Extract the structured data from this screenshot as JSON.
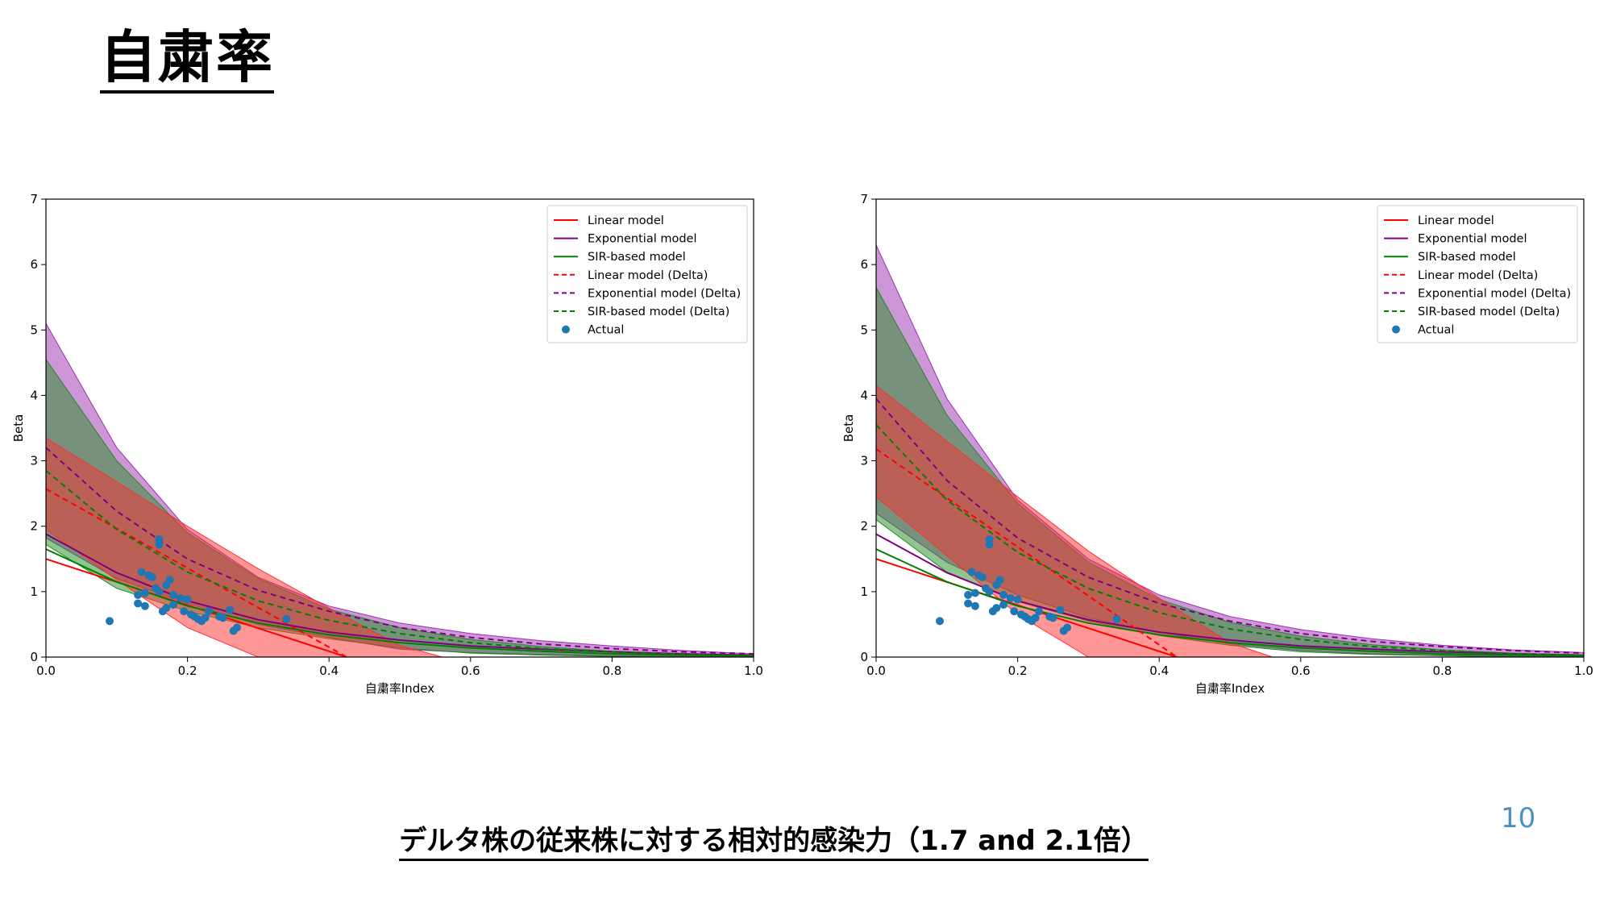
{
  "slide": {
    "title": "自粛率",
    "caption": "デルタ株の従来株に対する相対的感染力（1.7 and 2.1倍）",
    "page_number": "10"
  },
  "colors": {
    "linear": "#ff0000",
    "exponential": "#800080",
    "sir": "#008000",
    "actual": "#1f77b4",
    "page_number": "#4a90c2"
  },
  "chart_data": [
    {
      "type": "line",
      "xlabel": "自粛率Index",
      "ylabel": "Beta",
      "xlim": [
        0,
        1
      ],
      "ylim": [
        0,
        7
      ],
      "xticks": [
        "0.0",
        "0.2",
        "0.4",
        "0.6",
        "0.8",
        "1.0"
      ],
      "yticks": [
        "0",
        "1",
        "2",
        "3",
        "4",
        "5",
        "6",
        "7"
      ],
      "grid": false,
      "legend_position": "top-right",
      "legend": [
        "Linear model",
        "Exponential model",
        "SIR-based model",
        "Linear model (Delta)",
        "Exponential model (Delta)",
        "SIR-based model (Delta)",
        "Actual"
      ],
      "series": [
        {
          "name": "Linear model",
          "color": "#ff0000",
          "style": "solid",
          "x": [
            0,
            0.425
          ],
          "y": [
            1.5,
            0
          ]
        },
        {
          "name": "Exponential model",
          "color": "#800080",
          "style": "solid",
          "x": [
            0,
            0.1,
            0.2,
            0.3,
            0.4,
            0.5,
            0.6,
            0.7,
            0.8,
            0.9,
            1.0
          ],
          "y": [
            1.88,
            1.29,
            0.86,
            0.57,
            0.38,
            0.26,
            0.17,
            0.12,
            0.08,
            0.05,
            0.03
          ]
        },
        {
          "name": "SIR-based model",
          "color": "#008000",
          "style": "solid",
          "x": [
            0,
            0.1,
            0.2,
            0.3,
            0.4,
            0.5,
            0.6,
            0.7,
            0.8,
            0.9,
            1.0
          ],
          "y": [
            1.65,
            1.15,
            0.78,
            0.52,
            0.34,
            0.22,
            0.14,
            0.09,
            0.05,
            0.03,
            0.02
          ]
        },
        {
          "name": "Linear model (Delta)",
          "color": "#ff0000",
          "style": "dashed",
          "x": [
            0,
            0.425
          ],
          "y": [
            2.57,
            0
          ]
        },
        {
          "name": "Exponential model (Delta)",
          "color": "#800080",
          "style": "dashed",
          "x": [
            0,
            0.1,
            0.2,
            0.3,
            0.4,
            0.5,
            0.6,
            0.7,
            0.8,
            0.9,
            1.0
          ],
          "y": [
            3.2,
            2.23,
            1.5,
            1.02,
            0.7,
            0.45,
            0.3,
            0.2,
            0.13,
            0.08,
            0.05
          ]
        },
        {
          "name": "SIR-based model (Delta)",
          "color": "#008000",
          "style": "dashed",
          "x": [
            0,
            0.1,
            0.2,
            0.3,
            0.4,
            0.5,
            0.6,
            0.7,
            0.8,
            0.9,
            1.0
          ],
          "y": [
            2.85,
            1.95,
            1.3,
            0.86,
            0.56,
            0.36,
            0.22,
            0.13,
            0.08,
            0.04,
            0.02
          ]
        }
      ],
      "bands": [
        {
          "name": "Exponential model",
          "color": "#9b30b0",
          "x": [
            0,
            0.1,
            0.2,
            0.3,
            0.4,
            0.5,
            0.6,
            0.7,
            0.8,
            0.9,
            1.0
          ],
          "lower": [
            1.82,
            1.2,
            0.82,
            0.5,
            0.3,
            0.12,
            0.07,
            0.04,
            0.02,
            0.01,
            0.0
          ],
          "upper": [
            5.1,
            3.2,
            1.95,
            1.22,
            0.78,
            0.52,
            0.36,
            0.25,
            0.17,
            0.1,
            0.05
          ]
        },
        {
          "name": "SIR-based model",
          "color": "#228b22",
          "x": [
            0,
            0.1,
            0.2,
            0.3,
            0.4,
            0.5,
            0.6,
            0.7,
            0.8,
            0.9,
            1.0
          ],
          "lower": [
            1.72,
            1.05,
            0.7,
            0.45,
            0.28,
            0.14,
            0.06,
            0.03,
            0.01,
            0.0,
            0.0
          ],
          "upper": [
            4.55,
            3.0,
            1.9,
            1.2,
            0.73,
            0.45,
            0.27,
            0.16,
            0.09,
            0.05,
            0.02
          ]
        },
        {
          "name": "Linear model",
          "color": "#ff3030",
          "x": [
            0,
            0.1,
            0.2,
            0.3,
            0.4,
            0.5,
            0.56
          ],
          "lower": [
            1.95,
            1.18,
            0.45,
            0.0,
            0.0,
            0.0,
            0.0
          ],
          "upper": [
            3.35,
            2.68,
            2.0,
            1.35,
            0.75,
            0.18,
            0.0
          ]
        }
      ],
      "points": {
        "name": "Actual",
        "color": "#1f77b4",
        "x": [
          0.09,
          0.13,
          0.13,
          0.135,
          0.14,
          0.14,
          0.145,
          0.15,
          0.155,
          0.16,
          0.16,
          0.16,
          0.165,
          0.17,
          0.17,
          0.175,
          0.18,
          0.18,
          0.19,
          0.195,
          0.2,
          0.205,
          0.21,
          0.215,
          0.22,
          0.225,
          0.23,
          0.245,
          0.25,
          0.26,
          0.265,
          0.27,
          0.34
        ],
        "y": [
          0.55,
          0.95,
          0.82,
          1.3,
          0.98,
          0.78,
          1.25,
          1.22,
          1.05,
          1.8,
          1.72,
          1.0,
          0.7,
          1.1,
          0.75,
          1.18,
          0.95,
          0.8,
          0.9,
          0.7,
          0.88,
          0.65,
          0.62,
          0.58,
          0.55,
          0.6,
          0.7,
          0.62,
          0.6,
          0.72,
          0.4,
          0.45,
          0.58
        ]
      }
    },
    {
      "type": "line",
      "xlabel": "自粛率Index",
      "ylabel": "Beta",
      "xlim": [
        0,
        1
      ],
      "ylim": [
        0,
        7
      ],
      "xticks": [
        "0.0",
        "0.2",
        "0.4",
        "0.6",
        "0.8",
        "1.0"
      ],
      "yticks": [
        "0",
        "1",
        "2",
        "3",
        "4",
        "5",
        "6",
        "7"
      ],
      "grid": false,
      "legend_position": "top-right",
      "legend": [
        "Linear model",
        "Exponential model",
        "SIR-based model",
        "Linear model (Delta)",
        "Exponential model (Delta)",
        "SIR-based model (Delta)",
        "Actual"
      ],
      "series": [
        {
          "name": "Linear model",
          "color": "#ff0000",
          "style": "solid",
          "x": [
            0,
            0.425
          ],
          "y": [
            1.5,
            0
          ]
        },
        {
          "name": "Exponential model",
          "color": "#800080",
          "style": "solid",
          "x": [
            0,
            0.1,
            0.2,
            0.3,
            0.4,
            0.5,
            0.6,
            0.7,
            0.8,
            0.9,
            1.0
          ],
          "y": [
            1.88,
            1.29,
            0.86,
            0.57,
            0.38,
            0.26,
            0.17,
            0.12,
            0.08,
            0.05,
            0.03
          ]
        },
        {
          "name": "SIR-based model",
          "color": "#008000",
          "style": "solid",
          "x": [
            0,
            0.1,
            0.2,
            0.3,
            0.4,
            0.5,
            0.6,
            0.7,
            0.8,
            0.9,
            1.0
          ],
          "y": [
            1.65,
            1.15,
            0.78,
            0.52,
            0.34,
            0.22,
            0.14,
            0.09,
            0.05,
            0.03,
            0.02
          ]
        },
        {
          "name": "Linear model (Delta)",
          "color": "#ff0000",
          "style": "dashed",
          "x": [
            0,
            0.425
          ],
          "y": [
            3.18,
            0
          ]
        },
        {
          "name": "Exponential model (Delta)",
          "color": "#800080",
          "style": "dashed",
          "x": [
            0,
            0.1,
            0.2,
            0.3,
            0.4,
            0.5,
            0.6,
            0.7,
            0.8,
            0.9,
            1.0
          ],
          "y": [
            3.95,
            2.7,
            1.82,
            1.22,
            0.82,
            0.55,
            0.36,
            0.24,
            0.16,
            0.1,
            0.06
          ]
        },
        {
          "name": "SIR-based model (Delta)",
          "color": "#008000",
          "style": "dashed",
          "x": [
            0,
            0.1,
            0.2,
            0.3,
            0.4,
            0.5,
            0.6,
            0.7,
            0.8,
            0.9,
            1.0
          ],
          "y": [
            3.55,
            2.4,
            1.6,
            1.05,
            0.68,
            0.43,
            0.27,
            0.16,
            0.1,
            0.05,
            0.03
          ]
        }
      ],
      "bands": [
        {
          "name": "Exponential model",
          "color": "#9b30b0",
          "x": [
            0,
            0.1,
            0.2,
            0.3,
            0.4,
            0.5,
            0.6,
            0.7,
            0.8,
            0.9,
            1.0
          ],
          "lower": [
            2.2,
            1.45,
            0.95,
            0.6,
            0.38,
            0.2,
            0.1,
            0.05,
            0.03,
            0.01,
            0.0
          ],
          "upper": [
            6.3,
            3.95,
            2.4,
            1.5,
            0.95,
            0.62,
            0.42,
            0.28,
            0.18,
            0.11,
            0.07
          ]
        },
        {
          "name": "SIR-based model",
          "color": "#228b22",
          "x": [
            0,
            0.1,
            0.2,
            0.3,
            0.4,
            0.5,
            0.6,
            0.7,
            0.8,
            0.9,
            1.0
          ],
          "lower": [
            2.1,
            1.3,
            0.85,
            0.55,
            0.33,
            0.18,
            0.08,
            0.04,
            0.02,
            0.0,
            0.0
          ],
          "upper": [
            5.65,
            3.7,
            2.35,
            1.45,
            0.88,
            0.53,
            0.32,
            0.19,
            0.11,
            0.06,
            0.03
          ]
        },
        {
          "name": "Linear model",
          "color": "#ff3030",
          "x": [
            0,
            0.1,
            0.2,
            0.3,
            0.4,
            0.5,
            0.56
          ],
          "lower": [
            2.45,
            1.55,
            0.65,
            0.0,
            0.0,
            0.0,
            0.0
          ],
          "upper": [
            4.15,
            3.3,
            2.45,
            1.62,
            0.9,
            0.22,
            0.0
          ]
        }
      ],
      "points": {
        "name": "Actual",
        "color": "#1f77b4",
        "x": [
          0.09,
          0.13,
          0.13,
          0.135,
          0.14,
          0.14,
          0.145,
          0.15,
          0.155,
          0.16,
          0.16,
          0.16,
          0.165,
          0.17,
          0.17,
          0.175,
          0.18,
          0.18,
          0.19,
          0.195,
          0.2,
          0.205,
          0.21,
          0.215,
          0.22,
          0.225,
          0.23,
          0.245,
          0.25,
          0.26,
          0.265,
          0.27,
          0.34
        ],
        "y": [
          0.55,
          0.95,
          0.82,
          1.3,
          0.98,
          0.78,
          1.25,
          1.22,
          1.05,
          1.8,
          1.72,
          1.0,
          0.7,
          1.1,
          0.75,
          1.18,
          0.95,
          0.8,
          0.9,
          0.7,
          0.88,
          0.65,
          0.62,
          0.58,
          0.55,
          0.6,
          0.7,
          0.62,
          0.6,
          0.72,
          0.4,
          0.45,
          0.58
        ]
      }
    }
  ]
}
